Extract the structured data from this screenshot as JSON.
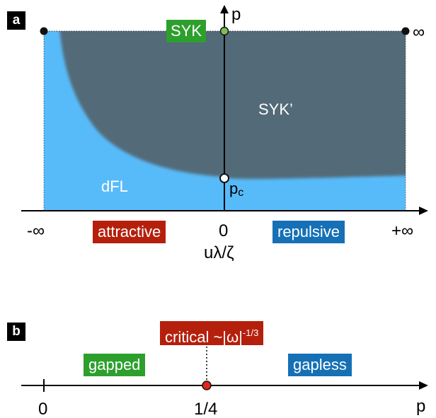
{
  "panel_a": {
    "label": "a",
    "axes": {
      "y_axis_label": "p",
      "x_axis_label": "uλ/ζ"
    },
    "ticks": {
      "neg_inf": "-∞",
      "zero": "0",
      "pos_inf": "+∞",
      "top_inf": "∞"
    },
    "regions": {
      "syk": "SYK",
      "syk_prime": "SYK’",
      "dfl": "dFL"
    },
    "point_labels": {
      "pc_base": "p",
      "pc_sub": "c"
    },
    "tags": {
      "attractive": "attractive",
      "repulsive": "repulsive"
    }
  },
  "panel_b": {
    "label": "b",
    "axis_label": "p",
    "ticks": {
      "zero": "0",
      "quarter": "1/4"
    },
    "tags": {
      "gapped": "gapped",
      "gapless": "gapless",
      "critical_base": "critical ~|ω|",
      "critical_exp": "-1/3"
    }
  },
  "colors": {
    "fl_blue": "#58bbf9",
    "syk_gray": "#536a78",
    "attractive_red": "#b5200d",
    "repulsive_blue": "#1670b5",
    "syk_green": "#2d9f2d",
    "critical_red": "#e0261a",
    "point_green": "#79c058"
  }
}
